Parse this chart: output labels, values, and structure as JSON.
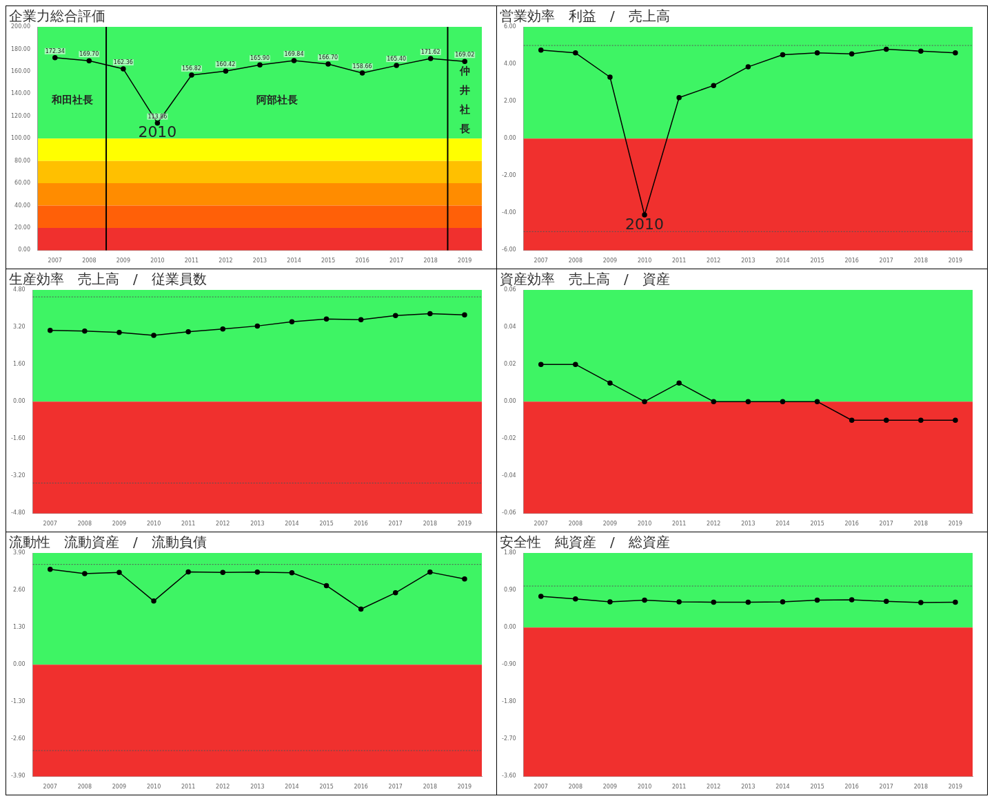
{
  "chart_data": [
    {
      "type": "line",
      "title": "企業力総合評価",
      "x": [
        2007,
        2008,
        2009,
        2010,
        2011,
        2012,
        2013,
        2014,
        2015,
        2016,
        2017,
        2018,
        2019
      ],
      "xlim": [
        2006.5,
        2019.5
      ],
      "xticks": [
        2007,
        2008,
        2009,
        2010,
        2011,
        2012,
        2013,
        2014,
        2015,
        2016,
        2017,
        2018,
        2019
      ],
      "ylim": [
        0,
        200
      ],
      "yticks": [
        {
          "value": 0,
          "label": "0.00"
        },
        {
          "value": 20,
          "label": "20.00"
        },
        {
          "value": 40,
          "label": "40.00"
        },
        {
          "value": 60,
          "label": "60.00"
        },
        {
          "value": 80,
          "label": "80.00"
        },
        {
          "value": 100,
          "label": "100.00"
        },
        {
          "value": 120,
          "label": "120.00"
        },
        {
          "value": 140,
          "label": "140.00"
        },
        {
          "value": 160,
          "label": "160.00"
        },
        {
          "value": 180,
          "label": "180.00"
        },
        {
          "value": 200,
          "label": "200.00"
        }
      ],
      "marker": "circle",
      "series": [
        {
          "color": "#000000",
          "values": [
            172.34,
            169.7,
            162.36,
            113.86,
            156.82,
            160.42,
            165.9,
            169.84,
            166.7,
            158.66,
            165.4,
            171.62,
            169.02
          ],
          "value_labels": [
            "172.34",
            "169.70",
            "162.36",
            "113.86",
            "156.82",
            "160.42",
            "165.90",
            "169.84",
            "166.70",
            "158.66",
            "165.40",
            "171.62",
            "169.02"
          ]
        }
      ],
      "bands": [
        {
          "axis": "y",
          "from": 100,
          "to": 200,
          "color": "#3ef464"
        },
        {
          "axis": "y",
          "from": 80,
          "to": 100,
          "color": "#ffff00"
        },
        {
          "axis": "y",
          "from": 60,
          "to": 80,
          "color": "#ffc000"
        },
        {
          "axis": "y",
          "from": 40,
          "to": 60,
          "color": "#ff8c00"
        },
        {
          "axis": "y",
          "from": 20,
          "to": 40,
          "color": "#ff6008"
        },
        {
          "axis": "y",
          "from": 0,
          "to": 20,
          "color": "#f0302e"
        }
      ],
      "ref_lines": [
        {
          "axis": "x",
          "value": 2008.5,
          "color": "#000000",
          "line_style": "solid"
        },
        {
          "axis": "x",
          "value": 2018.5,
          "color": "#000000",
          "line_style": "solid"
        }
      ],
      "annotations": [
        {
          "text": "2010",
          "x": 2010,
          "y": 113.86
        },
        "和田社長",
        "阿部社長",
        "仲井社長"
      ]
    },
    {
      "type": "line",
      "title": "営業効率　利益　/　売上高",
      "x": [
        2007,
        2008,
        2009,
        2010,
        2011,
        2012,
        2013,
        2014,
        2015,
        2016,
        2017,
        2018,
        2019
      ],
      "xlim": [
        2006.5,
        2019.5
      ],
      "xticks": [
        2007,
        2008,
        2009,
        2010,
        2011,
        2012,
        2013,
        2014,
        2015,
        2016,
        2017,
        2018,
        2019
      ],
      "ylim": [
        -6,
        6
      ],
      "yticks": [
        {
          "value": -6,
          "label": "-6.00"
        },
        {
          "value": -4,
          "label": "-4.00"
        },
        {
          "value": -2,
          "label": "-2.00"
        },
        {
          "value": 0,
          "label": "0.00"
        },
        {
          "value": 2,
          "label": "2.00"
        },
        {
          "value": 4,
          "label": "4.00"
        },
        {
          "value": 6,
          "label": "6.00"
        }
      ],
      "marker": "circle",
      "series": [
        {
          "color": "#000000",
          "values": [
            4.75,
            4.6,
            3.3,
            -4.1,
            2.2,
            2.85,
            3.85,
            4.5,
            4.6,
            4.55,
            4.8,
            4.7,
            4.6
          ]
        }
      ],
      "bands": [
        {
          "axis": "y",
          "from": 0,
          "to": 6,
          "color": "#3ef464"
        },
        {
          "axis": "y",
          "from": -6,
          "to": 0,
          "color": "#f0302e"
        }
      ],
      "ref_lines": [
        {
          "axis": "y",
          "value": 5,
          "color": "#555555",
          "line_style": "dotted"
        },
        {
          "axis": "y",
          "value": -5,
          "color": "#555555",
          "line_style": "dotted"
        }
      ],
      "annotations": [
        {
          "text": "2010",
          "x": 2010,
          "y": -4.1
        }
      ]
    },
    {
      "type": "line",
      "title": "生産効率　売上高　/　従業員数",
      "x": [
        2007,
        2008,
        2009,
        2010,
        2011,
        2012,
        2013,
        2014,
        2015,
        2016,
        2017,
        2018,
        2019
      ],
      "xlim": [
        2006.5,
        2019.5
      ],
      "xticks": [
        2007,
        2008,
        2009,
        2010,
        2011,
        2012,
        2013,
        2014,
        2015,
        2016,
        2017,
        2018,
        2019
      ],
      "ylim": [
        -4.8,
        4.8
      ],
      "yticks": [
        {
          "value": -4.8,
          "label": "-4.80"
        },
        {
          "value": -3.2,
          "label": "-3.20"
        },
        {
          "value": -1.6,
          "label": "-1.60"
        },
        {
          "value": 0,
          "label": "0.00"
        },
        {
          "value": 1.6,
          "label": "1.60"
        },
        {
          "value": 3.2,
          "label": "3.20"
        },
        {
          "value": 4.8,
          "label": "4.80"
        }
      ],
      "marker": "circle",
      "series": [
        {
          "color": "#000000",
          "values": [
            3.06,
            3.03,
            2.97,
            2.85,
            3.0,
            3.12,
            3.25,
            3.43,
            3.55,
            3.52,
            3.7,
            3.78,
            3.73
          ]
        }
      ],
      "bands": [
        {
          "axis": "y",
          "from": 0,
          "to": 4.8,
          "color": "#3ef464"
        },
        {
          "axis": "y",
          "from": -4.8,
          "to": 0,
          "color": "#f0302e"
        }
      ],
      "ref_lines": [
        {
          "axis": "y",
          "value": 4.5,
          "color": "#555555",
          "line_style": "dotted"
        },
        {
          "axis": "y",
          "value": -3.5,
          "color": "#555555",
          "line_style": "dotted"
        }
      ]
    },
    {
      "type": "line",
      "title": "資産効率　売上高　/　資産",
      "x": [
        2007,
        2008,
        2009,
        2010,
        2011,
        2012,
        2013,
        2014,
        2015,
        2016,
        2017,
        2018,
        2019
      ],
      "xlim": [
        2006.5,
        2019.5
      ],
      "xticks": [
        2007,
        2008,
        2009,
        2010,
        2011,
        2012,
        2013,
        2014,
        2015,
        2016,
        2017,
        2018,
        2019
      ],
      "ylim": [
        -0.06,
        0.06
      ],
      "yticks": [
        {
          "value": -0.06,
          "label": "-0.06"
        },
        {
          "value": -0.04,
          "label": "-0.04"
        },
        {
          "value": -0.02,
          "label": "-0.02"
        },
        {
          "value": 0,
          "label": "0.00"
        },
        {
          "value": 0.02,
          "label": "0.02"
        },
        {
          "value": 0.04,
          "label": "0.04"
        },
        {
          "value": 0.06,
          "label": "0.06"
        }
      ],
      "marker": "circle",
      "series": [
        {
          "color": "#000000",
          "values": [
            0.02,
            0.02,
            0.01,
            0,
            0.01,
            0,
            0,
            0,
            0,
            -0.01,
            -0.01,
            -0.01,
            -0.01
          ]
        }
      ],
      "bands": [
        {
          "axis": "y",
          "from": 0,
          "to": 0.06,
          "color": "#3ef464"
        },
        {
          "axis": "y",
          "from": -0.06,
          "to": 0,
          "color": "#f0302e"
        }
      ]
    },
    {
      "type": "line",
      "title": "流動性　流動資産　/　流動負債",
      "x": [
        2007,
        2008,
        2009,
        2010,
        2011,
        2012,
        2013,
        2014,
        2015,
        2016,
        2017,
        2018,
        2019
      ],
      "xlim": [
        2006.5,
        2019.5
      ],
      "xticks": [
        2007,
        2008,
        2009,
        2010,
        2011,
        2012,
        2013,
        2014,
        2015,
        2016,
        2017,
        2018,
        2019
      ],
      "ylim": [
        -3.9,
        3.9
      ],
      "yticks": [
        {
          "value": -3.9,
          "label": "-3.90"
        },
        {
          "value": -2.6,
          "label": "-2.60"
        },
        {
          "value": -1.3,
          "label": "-1.30"
        },
        {
          "value": 0,
          "label": "0.00"
        },
        {
          "value": 1.3,
          "label": "1.30"
        },
        {
          "value": 2.6,
          "label": "2.60"
        },
        {
          "value": 3.9,
          "label": "3.90"
        }
      ],
      "marker": "circle",
      "series": [
        {
          "color": "#000000",
          "values": [
            3.33,
            3.18,
            3.22,
            2.22,
            3.24,
            3.22,
            3.23,
            3.21,
            2.76,
            1.94,
            2.51,
            3.23,
            2.99
          ]
        }
      ],
      "bands": [
        {
          "axis": "y",
          "from": 0,
          "to": 3.9,
          "color": "#3ef464"
        },
        {
          "axis": "y",
          "from": -3.9,
          "to": 0,
          "color": "#f0302e"
        }
      ],
      "ref_lines": [
        {
          "axis": "y",
          "value": 3.5,
          "color": "#555555",
          "line_style": "dotted"
        },
        {
          "axis": "y",
          "value": -3,
          "color": "#555555",
          "line_style": "dotted"
        }
      ]
    },
    {
      "type": "line",
      "title": "安全性　純資産　/　総資産",
      "x": [
        2007,
        2008,
        2009,
        2010,
        2011,
        2012,
        2013,
        2014,
        2015,
        2016,
        2017,
        2018,
        2019
      ],
      "xlim": [
        2006.5,
        2019.5
      ],
      "xticks": [
        2007,
        2008,
        2009,
        2010,
        2011,
        2012,
        2013,
        2014,
        2015,
        2016,
        2017,
        2018,
        2019
      ],
      "ylim": [
        -3.6,
        1.8
      ],
      "yticks": [
        {
          "value": -3.6,
          "label": "-3.60"
        },
        {
          "value": -2.7,
          "label": "-2.70"
        },
        {
          "value": -1.8,
          "label": "-1.80"
        },
        {
          "value": -0.9,
          "label": "-0.90"
        },
        {
          "value": 0,
          "label": "0.00"
        },
        {
          "value": 0.9,
          "label": "0.90"
        },
        {
          "value": 1.8,
          "label": "1.80"
        }
      ],
      "marker": "circle",
      "series": [
        {
          "color": "#000000",
          "values": [
            0.75,
            0.69,
            0.62,
            0.66,
            0.62,
            0.61,
            0.61,
            0.62,
            0.66,
            0.67,
            0.63,
            0.6,
            0.61
          ]
        }
      ],
      "bands": [
        {
          "axis": "y",
          "from": 0,
          "to": 1.8,
          "color": "#3ef464"
        },
        {
          "axis": "y",
          "from": -3.6,
          "to": 0,
          "color": "#f0302e"
        }
      ],
      "ref_lines": [
        {
          "axis": "y",
          "value": 1,
          "color": "#555555",
          "line_style": "dotted"
        }
      ]
    }
  ]
}
